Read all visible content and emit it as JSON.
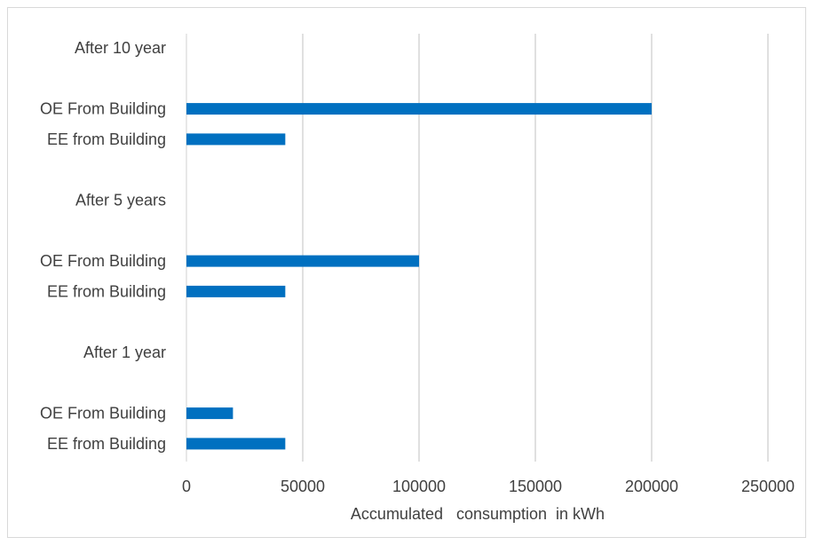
{
  "chart_data": {
    "type": "bar",
    "orientation": "horizontal",
    "categories": [
      "After 10 year",
      "OE From Building",
      "EE from Building",
      "After 5 years",
      "OE From Building",
      "EE from Building",
      "After 1 year",
      "OE From Building",
      "EE from Building"
    ],
    "values": [
      null,
      200000,
      42500,
      null,
      100000,
      42500,
      null,
      20000,
      42500
    ],
    "title": "",
    "xlabel": "Accumulated   consumption  in kWh",
    "ylabel": "",
    "xlim": [
      0,
      250000
    ],
    "xticks": [
      "0",
      "50000",
      "100000",
      "150000",
      "200000",
      "250000"
    ],
    "grid": "vertical",
    "legend": "none",
    "bar_color": "#0070c0",
    "grid_color": "#d9d9d9"
  }
}
